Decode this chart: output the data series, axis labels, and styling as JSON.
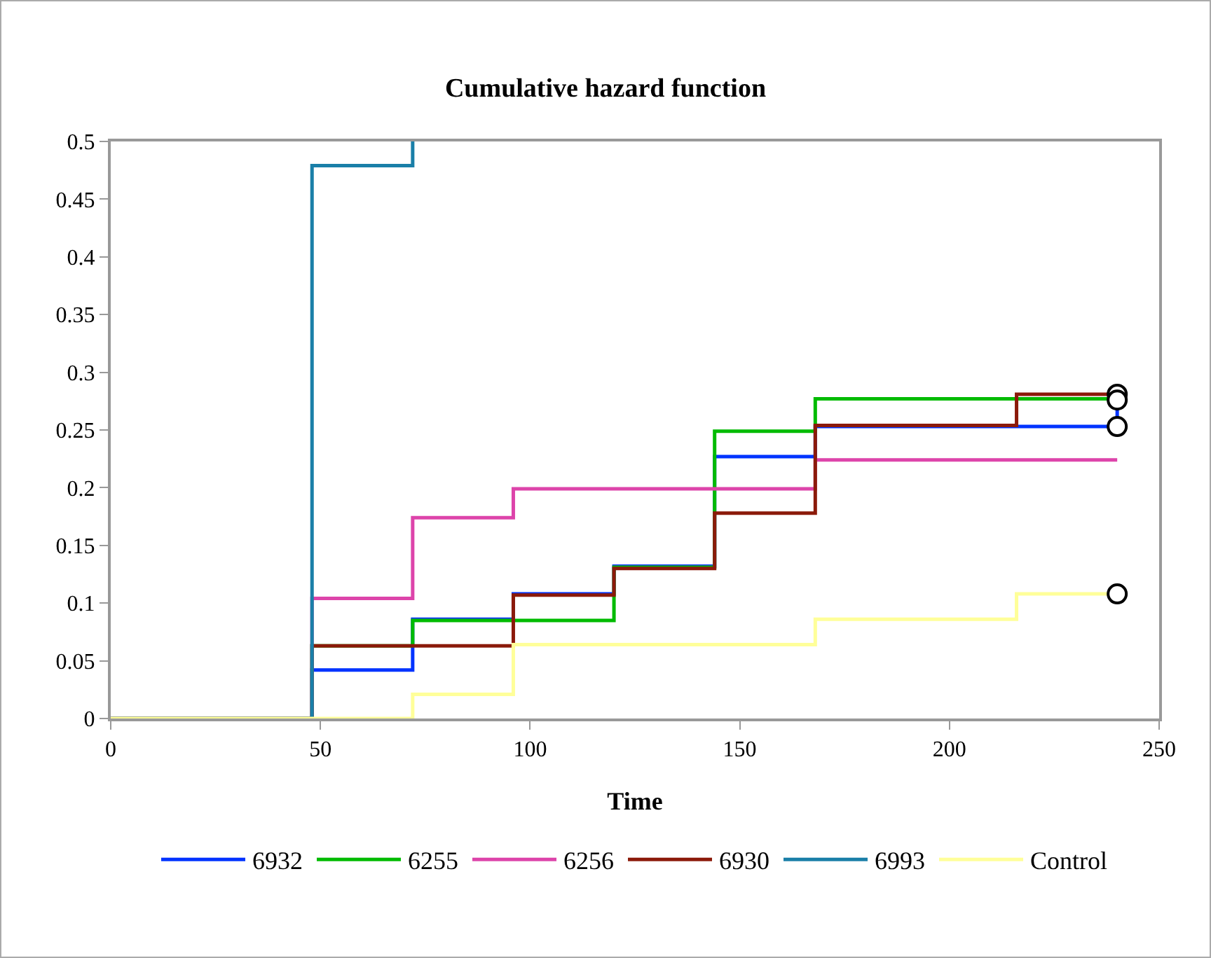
{
  "chart_data": {
    "type": "step",
    "title": "Cumulative hazard function",
    "xlabel": "Time",
    "xlim": [
      0,
      250
    ],
    "xticks": [
      0,
      50,
      100,
      150,
      200,
      250
    ],
    "ylim": [
      0,
      0.5
    ],
    "yticks": [
      0,
      0.05,
      0.1,
      0.15,
      0.2,
      0.25,
      0.3,
      0.35,
      0.4,
      0.45,
      0.5
    ],
    "grid": false,
    "legend": "bottom",
    "line_style": "solid",
    "series": [
      {
        "name": "6932",
        "color": "#0033ff",
        "x": [
          0,
          48,
          72,
          96,
          120,
          144,
          168,
          240
        ],
        "values": [
          0,
          0.042,
          0.086,
          0.108,
          0.132,
          0.227,
          0.253,
          0.276
        ]
      },
      {
        "name": "6255",
        "color": "#00bb00",
        "x": [
          0,
          48,
          72,
          120,
          144,
          168,
          240
        ],
        "values": [
          0,
          0.063,
          0.085,
          0.131,
          0.249,
          0.277,
          0.277
        ]
      },
      {
        "name": "6256",
        "color": "#dd44aa",
        "x": [
          0,
          48,
          72,
          96,
          168,
          240
        ],
        "values": [
          0,
          0.104,
          0.174,
          0.199,
          0.224,
          0.224
        ]
      },
      {
        "name": "6930",
        "color": "#8b1a0a",
        "x": [
          0,
          48,
          96,
          120,
          144,
          168,
          216,
          240
        ],
        "values": [
          0,
          0.063,
          0.107,
          0.13,
          0.178,
          0.254,
          0.281,
          0.281
        ]
      },
      {
        "name": "6993",
        "color": "#1a7fa8",
        "x": [
          0,
          48,
          72
        ],
        "values": [
          0,
          0.479,
          0.5
        ]
      },
      {
        "name": "Control",
        "color": "#ffff99",
        "x": [
          0,
          72,
          96,
          168,
          216,
          240
        ],
        "values": [
          0,
          0.021,
          0.064,
          0.086,
          0.108,
          0.108
        ]
      },
      {
        "type": "scatter",
        "marker": "circle",
        "color": "#000000",
        "x": [
          240,
          240,
          240,
          240
        ],
        "values": [
          0.281,
          0.276,
          0.253,
          0.108
        ]
      }
    ]
  }
}
